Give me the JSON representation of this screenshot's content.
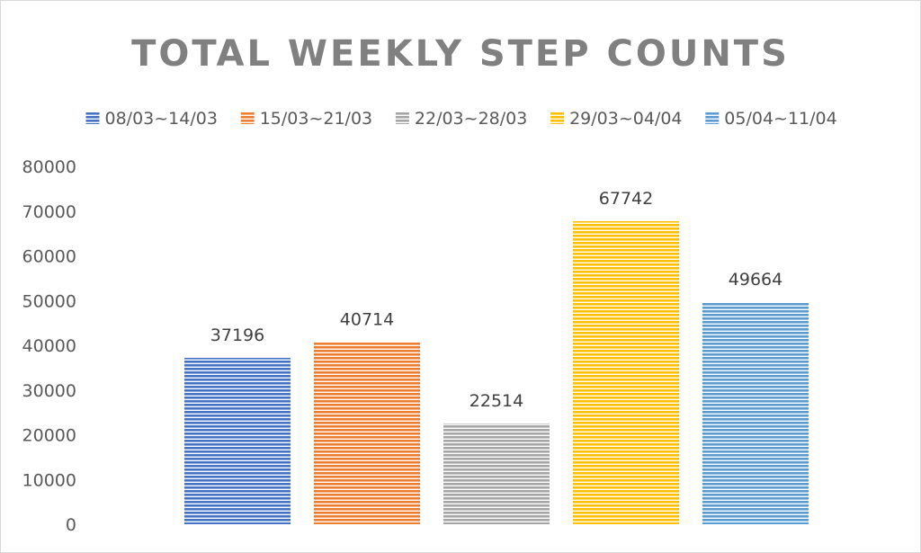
{
  "chart_data": {
    "type": "bar",
    "title": "TOTAL WEEKLY STEP COUNTS",
    "categories": [
      "08/03~14/03",
      "15/03~21/03",
      "22/03~28/03",
      "29/03~04/04",
      "05/04~11/04"
    ],
    "series": [
      {
        "values": [
          37196,
          40714,
          22514,
          67742,
          49664
        ]
      }
    ],
    "colors": [
      "#4472C4",
      "#ED7D31",
      "#A5A5A5",
      "#FFC000",
      "#5B9BD5"
    ],
    "legend": [
      "08/03~14/03",
      "15/03~21/03",
      "22/03~28/03",
      "29/03~04/04",
      "05/04~11/04"
    ],
    "legend_position": "top",
    "xlabel": "",
    "ylabel": "",
    "ylim": [
      0,
      80000
    ],
    "yticks": [
      0,
      10000,
      20000,
      30000,
      40000,
      50000,
      60000,
      70000,
      80000
    ],
    "grid": false,
    "data_labels": true,
    "bar_pattern": "horizontal-stripes"
  }
}
